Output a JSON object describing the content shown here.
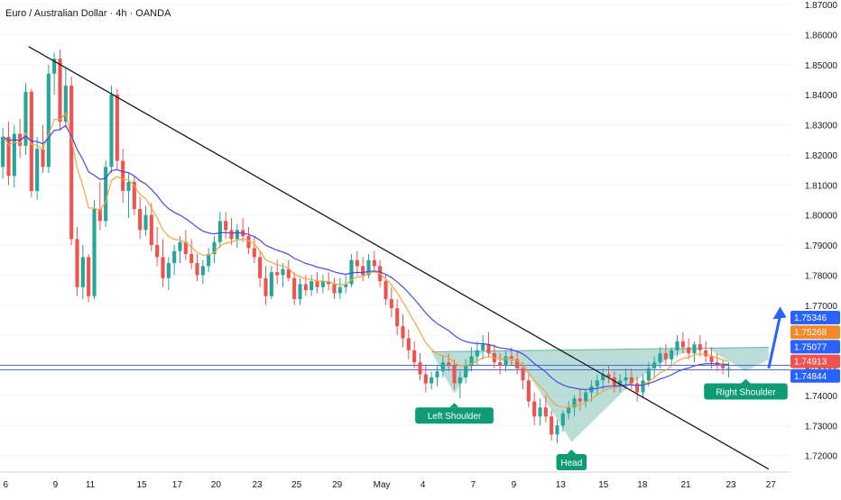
{
  "header": {
    "title": "Euro / Australian Dollar · 4h · OANDA"
  },
  "colors": {
    "background": "#ffffff",
    "up": "#26a69a",
    "down": "#ef5350",
    "ema_fast": "#f4a63b",
    "ema_slow": "#4a47e8",
    "pattern_fill": "#8cc8bd",
    "hline": "#4a6fd6",
    "trendline": "#131722",
    "arrow": "#2962ff",
    "label_bg": "#0f9b75"
  },
  "chart_data": {
    "type": "candlestick",
    "instrument": "Euro / Australian Dollar",
    "timeframe": "4h",
    "source": "OANDA",
    "ylim": [
      1.7145,
      1.8715
    ],
    "y_ticks": [
      "1.87000",
      "1.86000",
      "1.85000",
      "1.84000",
      "1.83000",
      "1.82000",
      "1.81000",
      "1.80000",
      "1.79000",
      "1.78000",
      "1.77000",
      "1.76000",
      "1.75000",
      "1.74000",
      "1.73000",
      "1.72000"
    ],
    "x_ticks": [
      {
        "label": "6",
        "pos": 0.5
      },
      {
        "label": "9",
        "pos": 9.2
      },
      {
        "label": "11",
        "pos": 15.3
      },
      {
        "label": "15",
        "pos": 24.3
      },
      {
        "label": "17",
        "pos": 30.5
      },
      {
        "label": "20",
        "pos": 37.3
      },
      {
        "label": "23",
        "pos": 44.5
      },
      {
        "label": "25",
        "pos": 51.4
      },
      {
        "label": "29",
        "pos": 58.5
      },
      {
        "label": "May",
        "pos": 66.3
      },
      {
        "label": "4",
        "pos": 73.5
      },
      {
        "label": "7",
        "pos": 82.3
      },
      {
        "label": "9",
        "pos": 89.4
      },
      {
        "label": "13",
        "pos": 97.6
      },
      {
        "label": "15",
        "pos": 105.1
      },
      {
        "label": "18",
        "pos": 111.9
      },
      {
        "label": "21",
        "pos": 119.5
      },
      {
        "label": "23",
        "pos": 127.4
      },
      {
        "label": "27",
        "pos": 134.4
      }
    ],
    "ohlc": [
      [
        1.816,
        1.829,
        1.812,
        1.826
      ],
      [
        1.826,
        1.831,
        1.81,
        1.813
      ],
      [
        1.813,
        1.83,
        1.809,
        1.827
      ],
      [
        1.827,
        1.832,
        1.819,
        1.823
      ],
      [
        1.823,
        1.844,
        1.82,
        1.841
      ],
      [
        1.841,
        1.842,
        1.806,
        1.808
      ],
      [
        1.808,
        1.826,
        1.805,
        1.822
      ],
      [
        1.822,
        1.83,
        1.814,
        1.816
      ],
      [
        1.816,
        1.85,
        1.814,
        1.847
      ],
      [
        1.847,
        1.854,
        1.84,
        1.852
      ],
      [
        1.852,
        1.855,
        1.828,
        1.831
      ],
      [
        1.831,
        1.849,
        1.829,
        1.843
      ],
      [
        1.843,
        1.846,
        1.79,
        1.792
      ],
      [
        1.792,
        1.796,
        1.773,
        1.776
      ],
      [
        1.776,
        1.79,
        1.772,
        1.786
      ],
      [
        1.786,
        1.787,
        1.771,
        1.773
      ],
      [
        1.773,
        1.805,
        1.772,
        1.802
      ],
      [
        1.802,
        1.811,
        1.795,
        1.798
      ],
      [
        1.798,
        1.818,
        1.796,
        1.816
      ],
      [
        1.816,
        1.843,
        1.814,
        1.84
      ],
      [
        1.84,
        1.842,
        1.815,
        1.818
      ],
      [
        1.818,
        1.822,
        1.804,
        1.808
      ],
      [
        1.808,
        1.814,
        1.799,
        1.811
      ],
      [
        1.811,
        1.813,
        1.8,
        1.802
      ],
      [
        1.802,
        1.806,
        1.792,
        1.795
      ],
      [
        1.795,
        1.803,
        1.793,
        1.8
      ],
      [
        1.8,
        1.804,
        1.788,
        1.79
      ],
      [
        1.79,
        1.796,
        1.783,
        1.786
      ],
      [
        1.786,
        1.792,
        1.776,
        1.779
      ],
      [
        1.779,
        1.786,
        1.775,
        1.784
      ],
      [
        1.784,
        1.79,
        1.78,
        1.788
      ],
      [
        1.788,
        1.793,
        1.784,
        1.791
      ],
      [
        1.791,
        1.795,
        1.785,
        1.787
      ],
      [
        1.787,
        1.792,
        1.782,
        1.784
      ],
      [
        1.784,
        1.787,
        1.778,
        1.78
      ],
      [
        1.78,
        1.785,
        1.777,
        1.783
      ],
      [
        1.783,
        1.789,
        1.781,
        1.787
      ],
      [
        1.787,
        1.793,
        1.784,
        1.791
      ],
      [
        1.791,
        1.801,
        1.789,
        1.798
      ],
      [
        1.798,
        1.801,
        1.792,
        1.795
      ],
      [
        1.795,
        1.799,
        1.79,
        1.792
      ],
      [
        1.792,
        1.797,
        1.789,
        1.795
      ],
      [
        1.795,
        1.799,
        1.791,
        1.793
      ],
      [
        1.793,
        1.796,
        1.787,
        1.789
      ],
      [
        1.789,
        1.793,
        1.784,
        1.786
      ],
      [
        1.786,
        1.788,
        1.776,
        1.779
      ],
      [
        1.779,
        1.783,
        1.77,
        1.773
      ],
      [
        1.773,
        1.783,
        1.772,
        1.781
      ],
      [
        1.781,
        1.785,
        1.777,
        1.78
      ],
      [
        1.78,
        1.784,
        1.776,
        1.782
      ],
      [
        1.782,
        1.785,
        1.778,
        1.779
      ],
      [
        1.779,
        1.781,
        1.77,
        1.772
      ],
      [
        1.772,
        1.779,
        1.77,
        1.777
      ],
      [
        1.777,
        1.78,
        1.773,
        1.775
      ],
      [
        1.775,
        1.78,
        1.773,
        1.778
      ],
      [
        1.778,
        1.781,
        1.774,
        1.776
      ],
      [
        1.776,
        1.78,
        1.774,
        1.778
      ],
      [
        1.778,
        1.781,
        1.775,
        1.777
      ],
      [
        1.777,
        1.779,
        1.772,
        1.774
      ],
      [
        1.774,
        1.779,
        1.772,
        1.776
      ],
      [
        1.776,
        1.78,
        1.774,
        1.777
      ],
      [
        1.777,
        1.787,
        1.776,
        1.785
      ],
      [
        1.785,
        1.788,
        1.78,
        1.783
      ],
      [
        1.783,
        1.786,
        1.778,
        1.78
      ],
      [
        1.78,
        1.787,
        1.779,
        1.785
      ],
      [
        1.785,
        1.788,
        1.781,
        1.783
      ],
      [
        1.783,
        1.785,
        1.776,
        1.778
      ],
      [
        1.778,
        1.78,
        1.77,
        1.772
      ],
      [
        1.772,
        1.776,
        1.766,
        1.769
      ],
      [
        1.769,
        1.772,
        1.76,
        1.763
      ],
      [
        1.763,
        1.767,
        1.756,
        1.759
      ],
      [
        1.759,
        1.762,
        1.752,
        1.755
      ],
      [
        1.755,
        1.758,
        1.749,
        1.751
      ],
      [
        1.751,
        1.754,
        1.745,
        1.747
      ],
      [
        1.747,
        1.75,
        1.741,
        1.744
      ],
      [
        1.744,
        1.748,
        1.742,
        1.746
      ],
      [
        1.746,
        1.75,
        1.743,
        1.748
      ],
      [
        1.748,
        1.753,
        1.746,
        1.751
      ],
      [
        1.751,
        1.754,
        1.748,
        1.75
      ],
      [
        1.75,
        1.752,
        1.742,
        1.744
      ],
      [
        1.744,
        1.748,
        1.739,
        1.746
      ],
      [
        1.746,
        1.752,
        1.744,
        1.75
      ],
      [
        1.75,
        1.756,
        1.748,
        1.753
      ],
      [
        1.753,
        1.758,
        1.75,
        1.755
      ],
      [
        1.755,
        1.76,
        1.752,
        1.757
      ],
      [
        1.757,
        1.761,
        1.753,
        1.754
      ],
      [
        1.754,
        1.757,
        1.749,
        1.751
      ],
      [
        1.751,
        1.754,
        1.747,
        1.75
      ],
      [
        1.75,
        1.755,
        1.748,
        1.753
      ],
      [
        1.753,
        1.756,
        1.75,
        1.752
      ],
      [
        1.752,
        1.755,
        1.747,
        1.749
      ],
      [
        1.749,
        1.751,
        1.742,
        1.745
      ],
      [
        1.745,
        1.747,
        1.736,
        1.738
      ],
      [
        1.738,
        1.741,
        1.73,
        1.733
      ],
      [
        1.733,
        1.739,
        1.73,
        1.736
      ],
      [
        1.736,
        1.74,
        1.731,
        1.733
      ],
      [
        1.733,
        1.735,
        1.725,
        1.727
      ],
      [
        1.727,
        1.732,
        1.724,
        1.73
      ],
      [
        1.73,
        1.735,
        1.728,
        1.734
      ],
      [
        1.734,
        1.738,
        1.732,
        1.736
      ],
      [
        1.736,
        1.74,
        1.733,
        1.739
      ],
      [
        1.739,
        1.742,
        1.735,
        1.738
      ],
      [
        1.738,
        1.742,
        1.736,
        1.741
      ],
      [
        1.741,
        1.745,
        1.738,
        1.743
      ],
      [
        1.743,
        1.747,
        1.74,
        1.745
      ],
      [
        1.745,
        1.749,
        1.742,
        1.747
      ],
      [
        1.747,
        1.75,
        1.744,
        1.746
      ],
      [
        1.746,
        1.748,
        1.741,
        1.743
      ],
      [
        1.743,
        1.747,
        1.741,
        1.745
      ],
      [
        1.745,
        1.749,
        1.742,
        1.746
      ],
      [
        1.746,
        1.749,
        1.742,
        1.744
      ],
      [
        1.744,
        1.746,
        1.738,
        1.741
      ],
      [
        1.741,
        1.747,
        1.739,
        1.745
      ],
      [
        1.745,
        1.751,
        1.743,
        1.749
      ],
      [
        1.749,
        1.753,
        1.746,
        1.751
      ],
      [
        1.751,
        1.756,
        1.749,
        1.754
      ],
      [
        1.754,
        1.757,
        1.75,
        1.752
      ],
      [
        1.752,
        1.756,
        1.75,
        1.755
      ],
      [
        1.755,
        1.76,
        1.753,
        1.758
      ],
      [
        1.758,
        1.761,
        1.754,
        1.756
      ],
      [
        1.756,
        1.759,
        1.752,
        1.754
      ],
      [
        1.754,
        1.758,
        1.751,
        1.757
      ],
      [
        1.757,
        1.76,
        1.753,
        1.755
      ],
      [
        1.755,
        1.758,
        1.751,
        1.753
      ],
      [
        1.753,
        1.756,
        1.749,
        1.751
      ],
      [
        1.751,
        1.754,
        1.748,
        1.75
      ],
      [
        1.75,
        1.752,
        1.747,
        1.749
      ],
      [
        1.749,
        1.751,
        1.746,
        1.7491
      ]
    ],
    "ema_fast": {
      "period": 9
    },
    "ema_slow": {
      "period": 21
    },
    "horizontal_lines": [
      1.75,
      1.7485
    ],
    "trendline": {
      "from": {
        "pos": 4.5,
        "price": 1.856
      },
      "to": {
        "pos": 134.0,
        "price": 1.7155
      }
    },
    "neckline": {
      "from": {
        "pos": 75,
        "price": 1.7545
      },
      "to": {
        "pos": 134,
        "price": 1.756
      }
    },
    "pattern_polygon": [
      {
        "pos": 75,
        "price": 1.7545
      },
      {
        "pos": 79,
        "price": 1.7405
      },
      {
        "pos": 84,
        "price": 1.7548
      },
      {
        "pos": 92,
        "price": 1.747
      },
      {
        "pos": 99.5,
        "price": 1.7245
      },
      {
        "pos": 110,
        "price": 1.744
      },
      {
        "pos": 117,
        "price": 1.753
      },
      {
        "pos": 123,
        "price": 1.756
      },
      {
        "pos": 130,
        "price": 1.748
      },
      {
        "pos": 134,
        "price": 1.752
      },
      {
        "pos": 134,
        "price": 1.756
      },
      {
        "pos": 123,
        "price": 1.7558
      }
    ],
    "annotations": [
      {
        "text": "Left Shoulder",
        "pos": 79,
        "price": 1.739,
        "anchor": "below"
      },
      {
        "text": "Head",
        "pos": 99.5,
        "price": 1.7235,
        "anchor": "below"
      },
      {
        "text": "Right Shoulder",
        "pos": 130,
        "price": 1.747,
        "anchor": "below"
      }
    ],
    "arrow": {
      "from": {
        "pos": 134,
        "price": 1.749
      },
      "to": {
        "pos": 136,
        "price": 1.7695
      }
    },
    "price_labels": [
      {
        "text": "1.75346",
        "color": "#2962ff"
      },
      {
        "text": "1.75268",
        "color": "#f4882a"
      },
      {
        "text": "1.75077",
        "color": "#2962ff"
      },
      {
        "text": "1.74913",
        "color": "#ef5350"
      },
      {
        "text": "1.74844",
        "color": "#2962ff"
      }
    ]
  }
}
